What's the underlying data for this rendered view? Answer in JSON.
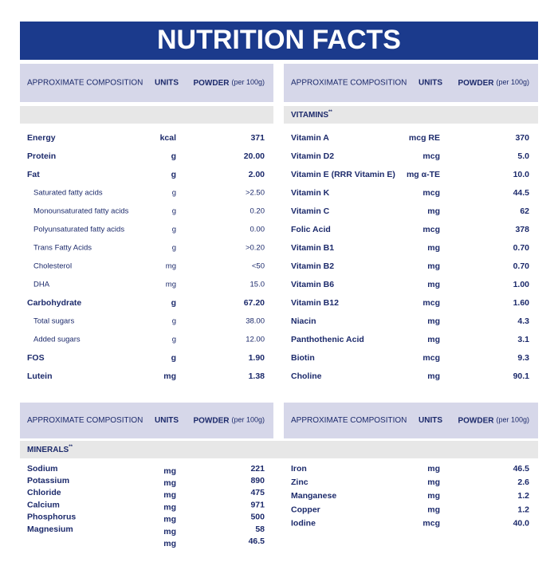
{
  "title": "NUTRITION FACTS",
  "panels": [
    {
      "header": {
        "composition": "APPROXIMATE COMPOSITION",
        "units": "UNITS",
        "powder": "POWDER",
        "per": "(per 100g)"
      },
      "rows": [
        {
          "name": "Energy",
          "unit": "kcal",
          "value": "371"
        },
        {
          "name": "Protein",
          "unit": "g",
          "value": "20.00"
        },
        {
          "name": "Fat",
          "unit": "g",
          "value": "2.00"
        },
        {
          "name": "Saturated fatty acids",
          "unit": "g",
          "value": ">2.50",
          "sub": true
        },
        {
          "name": "Monounsaturated fatty acids",
          "unit": "g",
          "value": "0.20",
          "sub": true
        },
        {
          "name": "Polyunsaturated fatty acids",
          "unit": "g",
          "value": "0.00",
          "sub": true
        },
        {
          "name": "Trans Fatty Acids",
          "unit": "g",
          "value": ">0.20",
          "sub": true
        },
        {
          "name": "Cholesterol",
          "unit": "mg",
          "value": "<50",
          "sub": true
        },
        {
          "name": "DHA",
          "unit": "mg",
          "value": "15.0",
          "sub": true
        },
        {
          "name": "Carbohydrate",
          "unit": "g",
          "value": "67.20"
        },
        {
          "name": "Total sugars",
          "unit": "g",
          "value": "38.00",
          "sub": true
        },
        {
          "name": "Added sugars",
          "unit": "g",
          "value": "12.00",
          "sub": true
        },
        {
          "name": "FOS",
          "unit": "g",
          "value": "1.90"
        },
        {
          "name": "Lutein",
          "unit": "mg",
          "value": "1.38"
        }
      ]
    },
    {
      "header": {
        "composition": "APPROXIMATE COMPOSITION",
        "units": "UNITS",
        "powder": "POWDER",
        "per": "(per 100g)"
      },
      "section": {
        "label": "VITAMINS",
        "mark": "**"
      },
      "rows": [
        {
          "name": "Vitamin A",
          "unit": "mcg RE",
          "value": "370"
        },
        {
          "name": "Vitamin D2",
          "unit": "mcg",
          "value": "5.0"
        },
        {
          "name": "Vitamin E (RRR Vitamin E)",
          "unit": "mg α-TE",
          "value": "10.0"
        },
        {
          "name": "Vitamin K",
          "unit": "mcg",
          "value": "44.5"
        },
        {
          "name": "Vitamin C",
          "unit": "mg",
          "value": "62"
        },
        {
          "name": "Folic Acid",
          "unit": "mcg",
          "value": "378"
        },
        {
          "name": "Vitamin B1",
          "unit": "mg",
          "value": "0.70"
        },
        {
          "name": "Vitamin B2",
          "unit": "mg",
          "value": "0.70"
        },
        {
          "name": "Vitamin B6",
          "unit": "mg",
          "value": "1.00"
        },
        {
          "name": "Vitamin B12",
          "unit": "mcg",
          "value": "1.60"
        },
        {
          "name": "Niacin",
          "unit": "mg",
          "value": "4.3"
        },
        {
          "name": "Panthothenic Acid",
          "unit": "mg",
          "value": "3.1"
        },
        {
          "name": "Biotin",
          "unit": "mcg",
          "value": "9.3"
        },
        {
          "name": "Choline",
          "unit": "mg",
          "value": "90.1"
        }
      ]
    },
    {
      "header": {
        "composition": "APPROXIMATE COMPOSITION",
        "units": "UNITS",
        "powder": "POWDER",
        "per": "(per 100g)"
      },
      "section": {
        "label": "MINERALS",
        "mark": "**"
      },
      "rows": [
        {
          "name": "Sodium",
          "unit": "mg",
          "value": "221"
        },
        {
          "name": "Potassium",
          "unit": "mg",
          "value": "890"
        },
        {
          "name": "Chloride",
          "unit": "mg",
          "value": "475"
        },
        {
          "name": "Calcium",
          "unit": "mg",
          "value": "971"
        },
        {
          "name": "Phosphorus",
          "unit": "mg",
          "value": "500"
        },
        {
          "name": "Magnesium",
          "unit": "mg",
          "value": "58"
        },
        {
          "name": "",
          "unit": "mg",
          "value": "46.5"
        }
      ]
    },
    {
      "header": {
        "composition": "APPROXIMATE COMPOSITION",
        "units": "UNITS",
        "powder": "POWDER",
        "per": "(per 100g)"
      },
      "rows": [
        {
          "name": "Iron",
          "unit": "mg",
          "value": "46.5"
        },
        {
          "name": "Zinc",
          "unit": "mg",
          "value": "2.6"
        },
        {
          "name": "Manganese",
          "unit": "mg",
          "value": "1.2"
        },
        {
          "name": "Copper",
          "unit": "mg",
          "value": "1.2"
        },
        {
          "name": "Iodine",
          "unit": "mcg",
          "value": "40.0"
        }
      ]
    }
  ]
}
